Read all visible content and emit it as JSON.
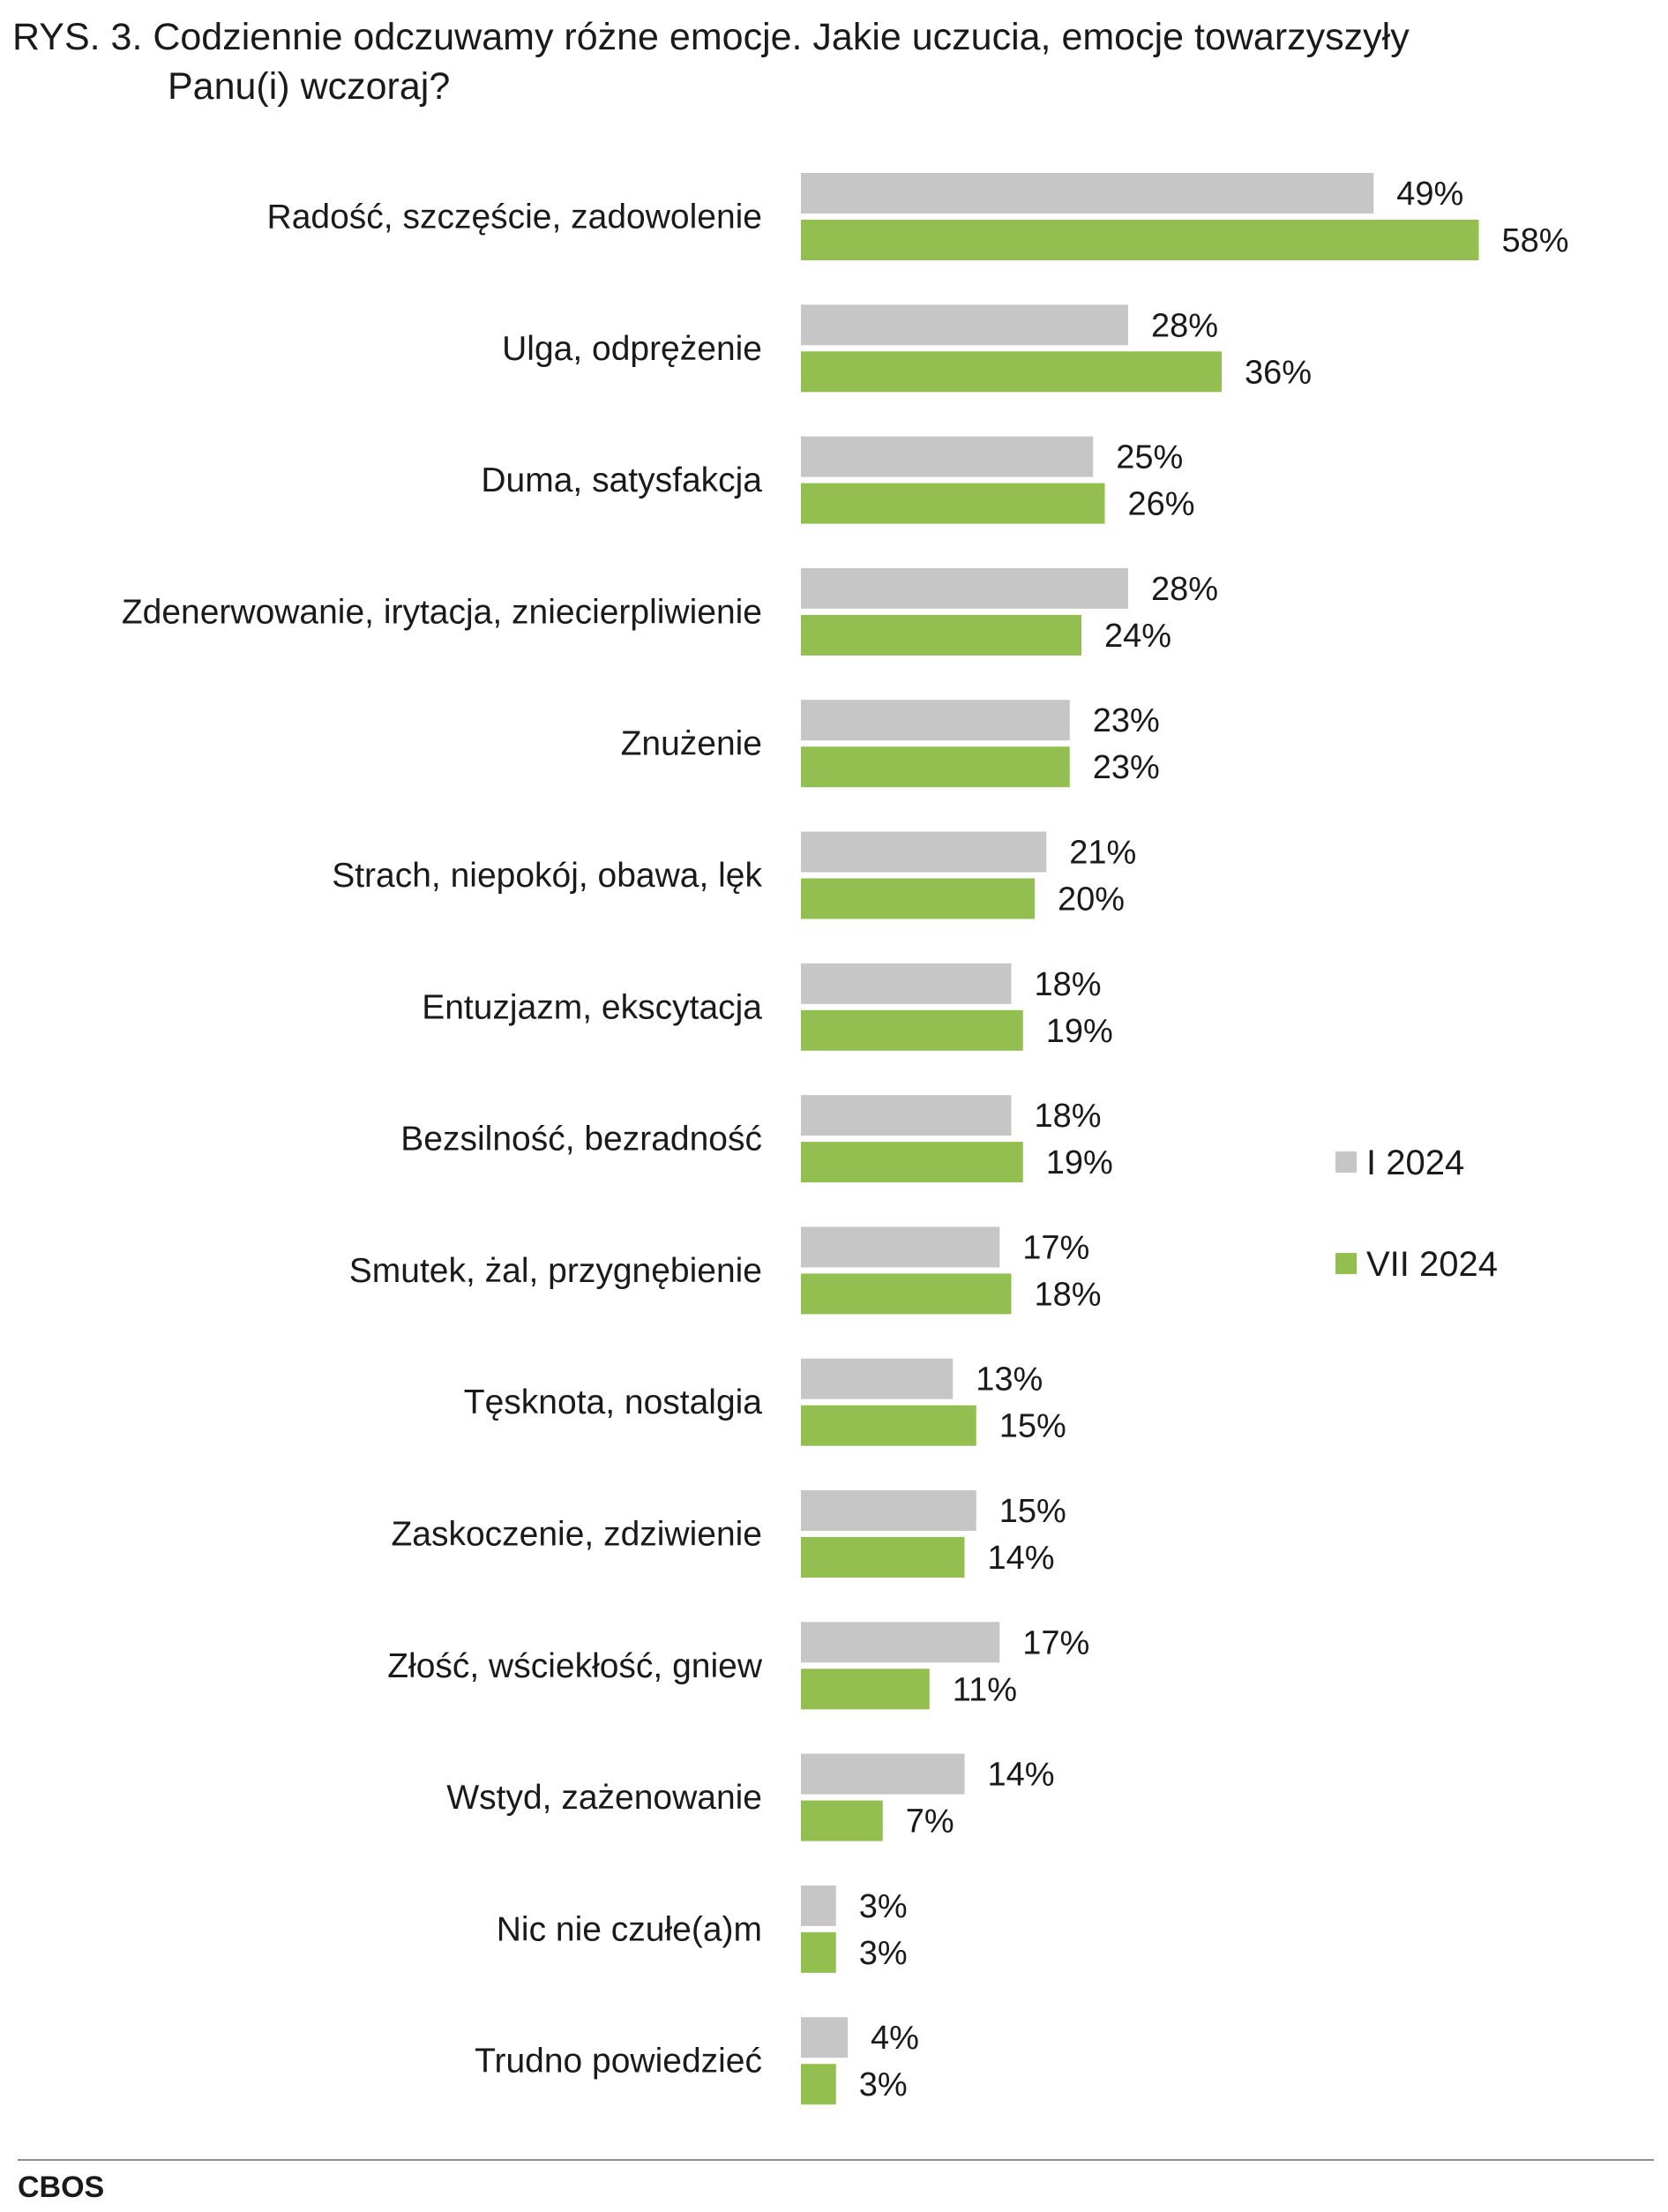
{
  "title": {
    "line1": "RYS. 3. Codziennie odczuwamy różne emocje. Jakie uczucia, emocje towarzyszyły",
    "line2": "Panu(i) wczoraj?"
  },
  "source": "CBOS",
  "chart_data": {
    "type": "bar",
    "orientation": "horizontal",
    "categories": [
      "Radość, szczęście, zadowolenie",
      "Ulga, odprężenie",
      "Duma, satysfakcja",
      "Zdenerwowanie, irytacja, zniecierpliwienie",
      "Znużenie",
      "Strach, niepokój, obawa, lęk",
      "Entuzjazm, ekscytacja",
      "Bezsilność, bezradność",
      "Smutek, żal, przygnębienie",
      "Tęsknota, nostalgia",
      "Zaskoczenie, zdziwienie",
      "Złość, wściekłość, gniew",
      "Wstyd, zażenowanie",
      "Nic nie czułe(a)m",
      "Trudno powiedzieć"
    ],
    "series": [
      {
        "name": "I 2024",
        "color": "#c6c6c6",
        "values": [
          49,
          28,
          25,
          28,
          23,
          21,
          18,
          18,
          17,
          13,
          15,
          17,
          14,
          3,
          4
        ]
      },
      {
        "name": "VII 2024",
        "color": "#92bf50",
        "values": [
          58,
          36,
          26,
          24,
          23,
          20,
          19,
          19,
          18,
          15,
          14,
          11,
          7,
          3,
          3
        ]
      }
    ],
    "value_suffix": "%",
    "xlim": [
      0,
      60
    ],
    "grid": false,
    "legend": {
      "placement": "right"
    }
  }
}
